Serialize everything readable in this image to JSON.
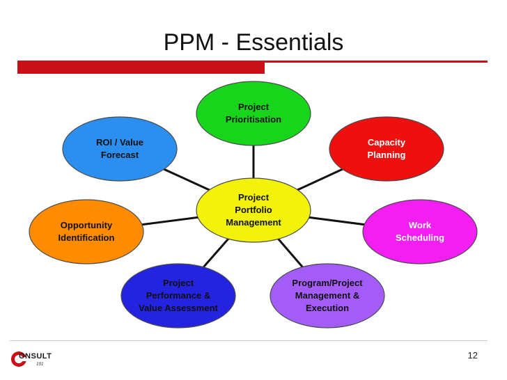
{
  "slide": {
    "title": "PPM - Essentials",
    "page_number": "12"
  },
  "logo": {
    "main_text": "ONSULT",
    "sub_text": "101"
  },
  "colors": {
    "accent_red": "#c81016",
    "connector": "#111111"
  },
  "diagram": {
    "center": {
      "lines": [
        "Project",
        "Portfolio",
        "Management"
      ],
      "fill": "#f2f20a",
      "text_color": "#111111"
    },
    "nodes": [
      {
        "id": "project-prioritisation",
        "lines": [
          "Project",
          "Prioritisation"
        ],
        "fill": "#18d51c",
        "text_color": "#111111"
      },
      {
        "id": "capacity-planning",
        "lines": [
          "Capacity",
          "Planning"
        ],
        "fill": "#ee0f0f",
        "text_color": "#ffffff"
      },
      {
        "id": "work-scheduling",
        "lines": [
          "Work",
          "Scheduling"
        ],
        "fill": "#f21ef2",
        "text_color": "#ffffff"
      },
      {
        "id": "program-project-management",
        "lines": [
          "Program/Project",
          "Management &",
          "Execution"
        ],
        "fill": "#a35cf7",
        "text_color": "#111111"
      },
      {
        "id": "project-performance",
        "lines": [
          "Project",
          "Performance  &",
          "Value Assessment"
        ],
        "fill": "#2323e0",
        "text_color": "#111111"
      },
      {
        "id": "opportunity-identification",
        "lines": [
          "Opportunity",
          "Identification"
        ],
        "fill": "#ff8c00",
        "text_color": "#111111"
      },
      {
        "id": "roi-value-forecast",
        "lines": [
          "ROI / Value",
          "Forecast"
        ],
        "fill": "#2c8ff0",
        "text_color": "#111111"
      }
    ]
  }
}
